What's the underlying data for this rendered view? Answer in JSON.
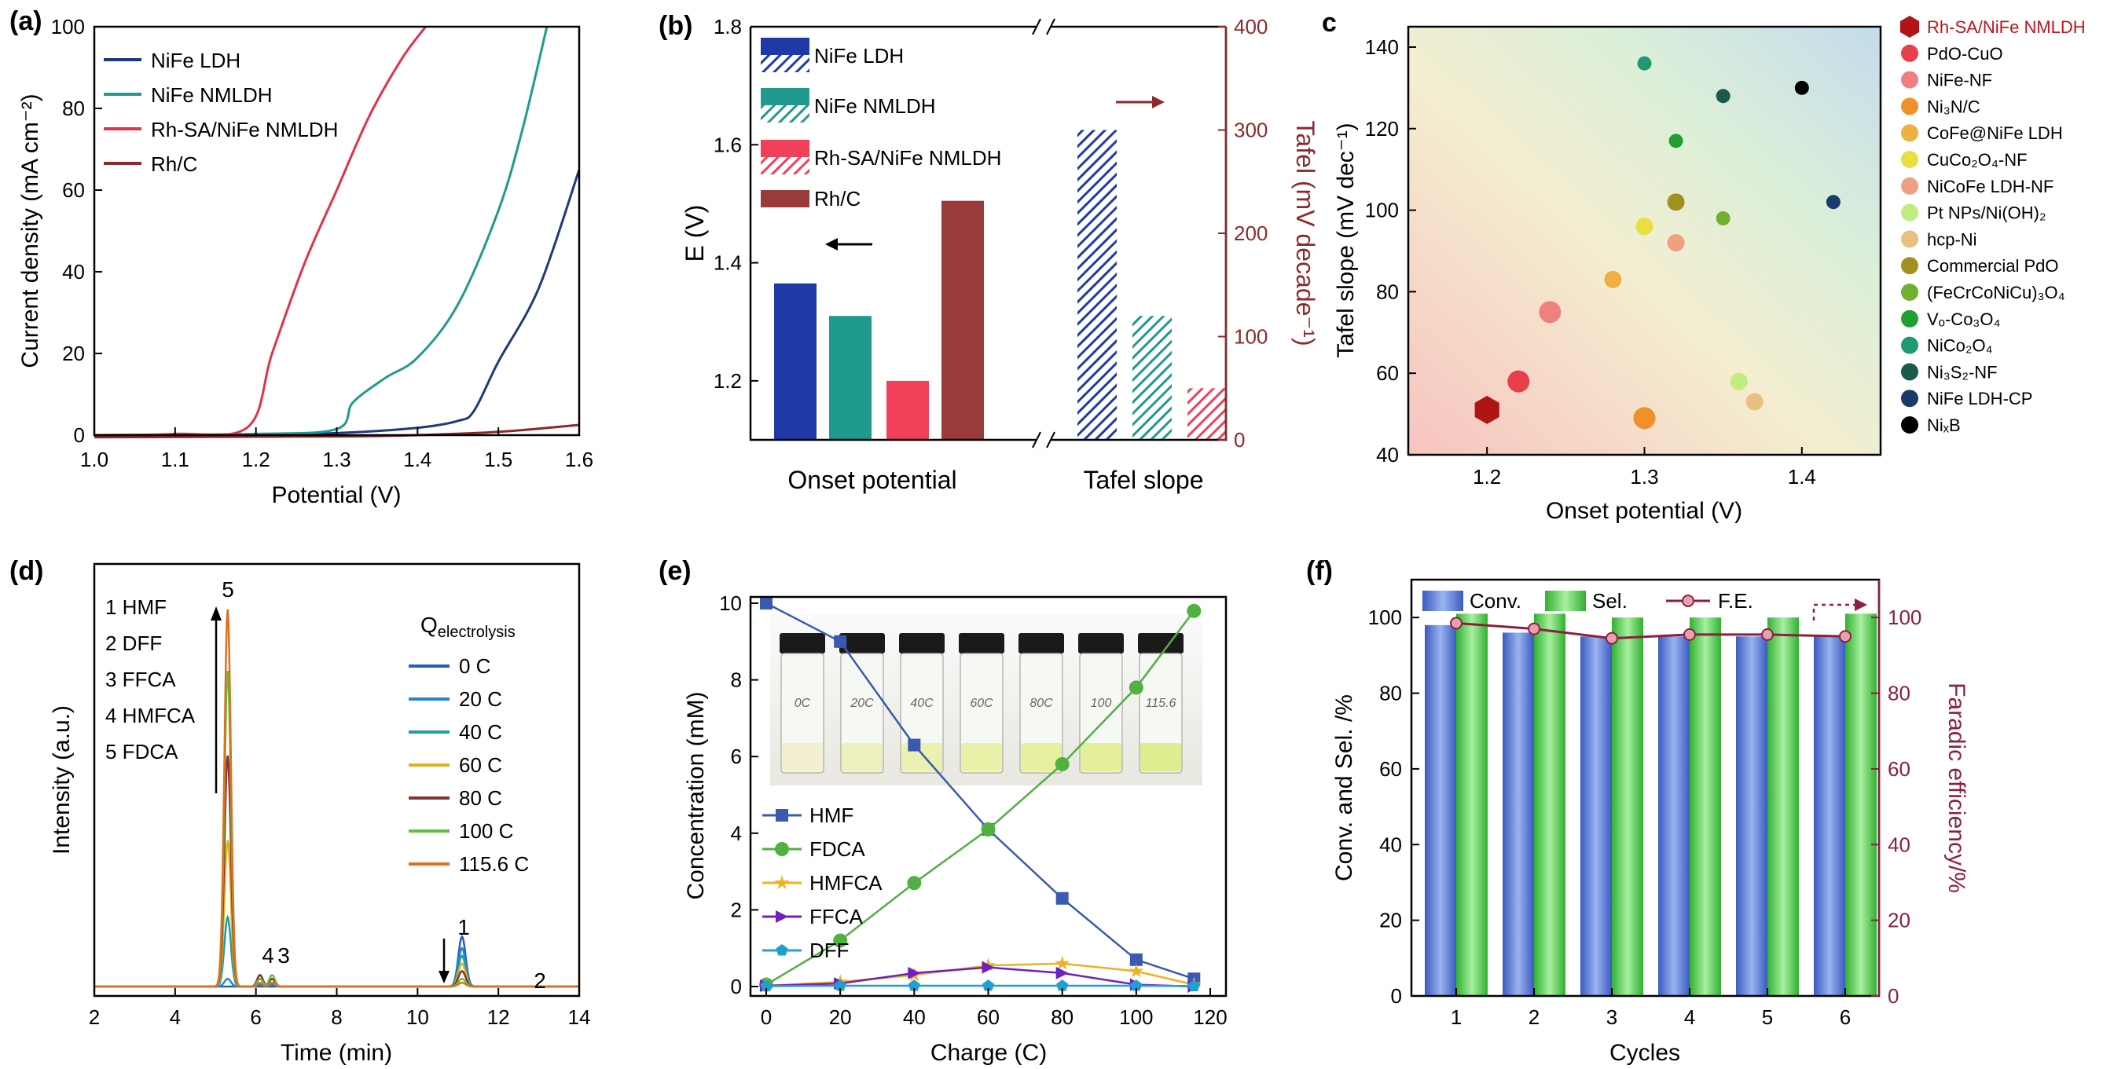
{
  "chart_data": [
    {
      "panel": "(a)",
      "type": "line",
      "xlabel": "Potential (V)",
      "ylabel": "Current density (mA cm⁻²)",
      "xlim": [
        1.0,
        1.6
      ],
      "ylim": [
        0,
        100
      ],
      "xticks": [
        1.0,
        1.1,
        1.2,
        1.3,
        1.4,
        1.5,
        1.6
      ],
      "yticks": [
        0,
        20,
        40,
        60,
        80,
        100
      ],
      "series": [
        {
          "name": "NiFe LDH",
          "color": "#1f3a7a",
          "x": [
            1.0,
            1.2,
            1.3,
            1.4,
            1.45,
            1.47,
            1.5,
            1.55,
            1.6
          ],
          "y": [
            0,
            0.2,
            0.5,
            1.8,
            3.5,
            6,
            18,
            36,
            65
          ]
        },
        {
          "name": "NiFe NMLDH",
          "color": "#1f9a8c",
          "x": [
            1.0,
            1.2,
            1.3,
            1.32,
            1.36,
            1.4,
            1.45,
            1.5,
            1.53,
            1.56
          ],
          "y": [
            0,
            0.3,
            1.5,
            8,
            14,
            19,
            32,
            55,
            75,
            100
          ]
        },
        {
          "name": "Rh-SA/NiFe NMLDH",
          "color": "#e0334a",
          "x": [
            1.0,
            1.1,
            1.19,
            1.22,
            1.26,
            1.3,
            1.34,
            1.38,
            1.41
          ],
          "y": [
            0,
            0.3,
            2,
            20,
            42,
            60,
            78,
            92,
            100
          ]
        },
        {
          "name": "Rh/C",
          "color": "#8b2a2a",
          "x": [
            1.0,
            1.3,
            1.4,
            1.5,
            1.6
          ],
          "y": [
            -0.5,
            -0.3,
            0,
            0.8,
            2.5
          ]
        }
      ]
    },
    {
      "panel": "(b)",
      "type": "bar",
      "ylabel_left": "E (V)",
      "ylabel_right": "Tafel (mV decade⁻¹)",
      "xlabel_groups": [
        "Onset potential",
        "Tafel slope"
      ],
      "ylim_left": [
        1.1,
        1.8
      ],
      "yticks_left": [
        1.2,
        1.4,
        1.6,
        1.8
      ],
      "ylim_right": [
        0,
        400
      ],
      "yticks_right": [
        0,
        100,
        200,
        300,
        400
      ],
      "legend": [
        "NiFe LDH",
        "NiFe NMLDH",
        "Rh-SA/NiFe NMLDH",
        "Rh/C"
      ],
      "colors": [
        "#1f3aa6",
        "#1f9a8c",
        "#f0405a",
        "#9a3a3a"
      ],
      "onset_potential_V": [
        1.365,
        1.31,
        1.2,
        1.505
      ],
      "tafel_slope_mV_dec": [
        300,
        120,
        50
      ]
    },
    {
      "panel": "c",
      "type": "scatter",
      "xlabel": "Onset potential (V)",
      "ylabel": "Tafel slope (mV dec⁻¹)",
      "xlim": [
        1.15,
        1.45
      ],
      "ylim": [
        40,
        145
      ],
      "xticks": [
        1.2,
        1.3,
        1.4
      ],
      "yticks": [
        40,
        60,
        80,
        100,
        120,
        140
      ],
      "points": [
        {
          "name": "Rh-SA/NiFe NMLDH",
          "x": 1.2,
          "y": 51,
          "color": "#b01515",
          "marker": "hexagon"
        },
        {
          "name": "PdO-CuO",
          "x": 1.22,
          "y": 58,
          "color": "#e8404a"
        },
        {
          "name": "NiFe-NF",
          "x": 1.24,
          "y": 75,
          "color": "#ef8080"
        },
        {
          "name": "Ni3N/C",
          "x": 1.3,
          "y": 49,
          "color": "#f0902a"
        },
        {
          "name": "CoFe@NiFe LDH",
          "x": 1.28,
          "y": 83,
          "color": "#f0b040"
        },
        {
          "name": "CuCo2O4-NF",
          "x": 1.3,
          "y": 96,
          "color": "#e8e040"
        },
        {
          "name": "NiCoFe LDH-NF",
          "x": 1.32,
          "y": 92,
          "color": "#f0a080"
        },
        {
          "name": "Pt NPs/Ni(OH)2",
          "x": 1.36,
          "y": 58,
          "color": "#c0ec80"
        },
        {
          "name": "hcp-Ni",
          "x": 1.37,
          "y": 53,
          "color": "#e8c080"
        },
        {
          "name": "Commercial PdO",
          "x": 1.32,
          "y": 102,
          "color": "#a09020"
        },
        {
          "name": "(FeCrCoNiCu)3O4",
          "x": 1.35,
          "y": 98,
          "color": "#70b030"
        },
        {
          "name": "VO-Co3O4",
          "x": 1.32,
          "y": 117,
          "color": "#20a030"
        },
        {
          "name": "NiCo2O4",
          "x": 1.3,
          "y": 136,
          "color": "#209a70"
        },
        {
          "name": "Ni3S2-NF",
          "x": 1.35,
          "y": 128,
          "color": "#1a5a4a"
        },
        {
          "name": "NiFe LDH-CP",
          "x": 1.42,
          "y": 102,
          "color": "#1a3a6a"
        },
        {
          "name": "NixB",
          "x": 1.4,
          "y": 130,
          "color": "#000000"
        }
      ],
      "legend_labels": [
        "Rh-SA/NiFe NMLDH",
        "PdO-CuO",
        "NiFe-NF",
        "Ni₃N/C",
        "CoFe@NiFe LDH",
        "CuCo₂O₄-NF",
        "NiCoFe LDH-NF",
        "Pt NPs/Ni(OH)₂",
        "hcp-Ni",
        "Commercial PdO",
        "(FeCrCoNiCu)₃O₄",
        "Vₒ-Co₃O₄",
        "NiCo₂O₄",
        "Ni₃S₂-NF",
        "NiFe LDH-CP",
        "NiₓB"
      ]
    },
    {
      "panel": "(d)",
      "type": "line",
      "xlabel": "Time (min)",
      "ylabel": "Intensity (a.u.)",
      "xlim": [
        2,
        14
      ],
      "xticks": [
        2,
        4,
        6,
        8,
        10,
        12,
        14
      ],
      "compound_legend": [
        "1 HMF",
        "2 DFF",
        "3 FFCA",
        "4 HMFCA",
        "5 FDCA"
      ],
      "legend_title": "Q",
      "legend_title_sub": "electrolysis",
      "peak_labels": [
        "5",
        "4",
        "3",
        "1",
        "2"
      ],
      "series": [
        {
          "name": "0 C",
          "color": "#2060c0",
          "fdca": 0,
          "hmfca": 0,
          "ffca": 0,
          "hmf": 0.13
        },
        {
          "name": "20 C",
          "color": "#3080d0",
          "fdca": 0.02,
          "hmfca": 0.005,
          "ffca": 0.005,
          "hmf": 0.1
        },
        {
          "name": "40 C",
          "color": "#20a0a0",
          "fdca": 0.18,
          "hmfca": 0.02,
          "ffca": 0.01,
          "hmf": 0.08
        },
        {
          "name": "60 C",
          "color": "#e0b020",
          "fdca": 0.38,
          "hmfca": 0.03,
          "ffca": 0.02,
          "hmf": 0.06
        },
        {
          "name": "80 C",
          "color": "#8a3030",
          "fdca": 0.6,
          "hmfca": 0.03,
          "ffca": 0.02,
          "hmf": 0.04
        },
        {
          "name": "100 C",
          "color": "#60c040",
          "fdca": 0.82,
          "hmfca": 0.02,
          "ffca": 0.03,
          "hmf": 0.02
        },
        {
          "name": "115.6 C",
          "color": "#e07020",
          "fdca": 0.98,
          "hmfca": 0.01,
          "ffca": 0.01,
          "hmf": 0.01
        }
      ]
    },
    {
      "panel": "(e)",
      "type": "line",
      "xlabel": "Charge (C)",
      "ylabel": "Concentration (mM)",
      "xlim": [
        0,
        120
      ],
      "ylim": [
        0,
        10
      ],
      "xticks": [
        0,
        20,
        40,
        60,
        80,
        100,
        120
      ],
      "yticks": [
        0,
        2,
        4,
        6,
        8,
        10
      ],
      "x": [
        0,
        20,
        40,
        60,
        80,
        100,
        115.6
      ],
      "series": [
        {
          "name": "HMF",
          "color": "#3a5ab0",
          "marker": "square",
          "values": [
            10,
            9.0,
            6.3,
            4.1,
            2.3,
            0.7,
            0.2
          ]
        },
        {
          "name": "FDCA",
          "color": "#50b040",
          "marker": "circle",
          "values": [
            0.05,
            1.2,
            2.7,
            4.1,
            5.8,
            7.8,
            9.8
          ]
        },
        {
          "name": "HMFCA",
          "color": "#f0b020",
          "marker": "star",
          "values": [
            0.02,
            0.12,
            0.3,
            0.55,
            0.6,
            0.4,
            0.05
          ]
        },
        {
          "name": "FFCA",
          "color": "#7020c0",
          "marker": "triangle-right",
          "values": [
            0.02,
            0.08,
            0.35,
            0.5,
            0.35,
            0.05,
            0.0
          ]
        },
        {
          "name": "DFF",
          "color": "#20a0d0",
          "marker": "pentagon",
          "values": [
            0.01,
            0.02,
            0.02,
            0.02,
            0.02,
            0.02,
            0.01
          ]
        }
      ],
      "vial_labels": [
        "0C",
        "20C",
        "40C",
        "60C",
        "80C",
        "100",
        "115.6"
      ]
    },
    {
      "panel": "(f)",
      "type": "bar",
      "xlabel": "Cycles",
      "ylabel_left": "Conv. and Sel. /%",
      "ylabel_right": "Faradic efficiency/%",
      "categories": [
        "1",
        "2",
        "3",
        "4",
        "5",
        "6"
      ],
      "ylim": [
        0,
        110
      ],
      "yticks": [
        0,
        20,
        40,
        60,
        80,
        100
      ],
      "series": [
        {
          "name": "Conv.",
          "color": "#5a80d8",
          "values": [
            98,
            96,
            95,
            95,
            95,
            95
          ]
        },
        {
          "name": "Sel.",
          "color": "#5ad05a",
          "values": [
            101,
            101,
            100,
            100,
            100,
            101
          ]
        },
        {
          "name": "F.E.",
          "color": "#8a2040",
          "values": [
            98.5,
            97,
            94.5,
            95.5,
            95.5,
            95
          ]
        }
      ]
    }
  ]
}
